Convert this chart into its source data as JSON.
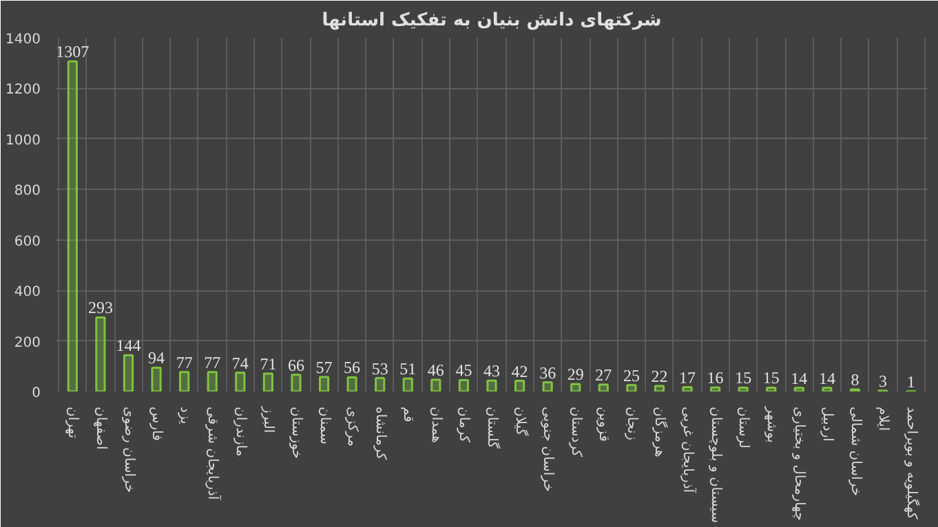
{
  "chart_data": {
    "type": "bar",
    "title": "شرکتهای دانش بنیان به تفکیک استانها",
    "categories": [
      "تهران",
      "اصفهان",
      "خراسان رضوی",
      "فارس",
      "یزد",
      "آذربایجان شرقی",
      "مازندران",
      "البرز",
      "خوزستان",
      "سمنان",
      "مرکزی",
      "کرمانشاه",
      "قم",
      "همدان",
      "کرمان",
      "گلستان",
      "گیلان",
      "خراسان جنوبی",
      "کردستان",
      "قزوین",
      "زنجان",
      "هرمزگان",
      "آذربایجان غربی",
      "سیستان و بلوچستان",
      "لرستان",
      "بوشهر",
      "چهارمحال و بختیاری",
      "اردبیل",
      "خراسان شمالی",
      "ایلام",
      "کهگیلویه و بویراحمد"
    ],
    "values": [
      1307,
      293,
      144,
      94,
      77,
      77,
      74,
      71,
      66,
      57,
      56,
      53,
      51,
      46,
      45,
      43,
      42,
      36,
      29,
      27,
      25,
      22,
      17,
      16,
      15,
      15,
      14,
      14,
      8,
      3,
      1
    ],
    "color": "#7fc241",
    "ylim": [
      0,
      1400
    ],
    "yticks": [
      0,
      200,
      400,
      600,
      800,
      1000,
      1200,
      1400
    ],
    "grid": true,
    "data_labels": true
  }
}
